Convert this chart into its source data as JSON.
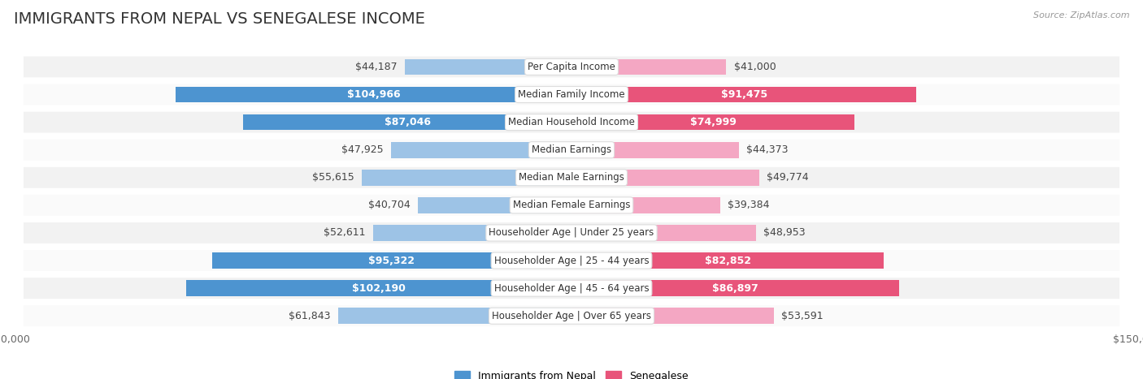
{
  "title": "IMMIGRANTS FROM NEPAL VS SENEGALESE INCOME",
  "source": "Source: ZipAtlas.com",
  "categories": [
    "Per Capita Income",
    "Median Family Income",
    "Median Household Income",
    "Median Earnings",
    "Median Male Earnings",
    "Median Female Earnings",
    "Householder Age | Under 25 years",
    "Householder Age | 25 - 44 years",
    "Householder Age | 45 - 64 years",
    "Householder Age | Over 65 years"
  ],
  "nepal_values": [
    44187,
    104966,
    87046,
    47925,
    55615,
    40704,
    52611,
    95322,
    102190,
    61843
  ],
  "senegal_values": [
    41000,
    91475,
    74999,
    44373,
    49774,
    39384,
    48953,
    82852,
    86897,
    53591
  ],
  "nepal_labels": [
    "$44,187",
    "$104,966",
    "$87,046",
    "$47,925",
    "$55,615",
    "$40,704",
    "$52,611",
    "$95,322",
    "$102,190",
    "$61,843"
  ],
  "senegal_labels": [
    "$41,000",
    "$91,475",
    "$74,999",
    "$44,373",
    "$49,774",
    "$39,384",
    "$48,953",
    "$82,852",
    "$86,897",
    "$53,591"
  ],
  "nepal_color_light": "#9dc3e6",
  "nepal_color_dark": "#4d94d0",
  "senegal_color_light": "#f4a7c3",
  "senegal_color_dark": "#e8547a",
  "axis_limit": 150000,
  "bar_height": 0.58,
  "bg_color": "#ffffff",
  "row_bg_even": "#f2f2f2",
  "row_bg_odd": "#fafafa",
  "label_fontsize": 9,
  "category_fontsize": 8.5,
  "title_fontsize": 14,
  "legend_fontsize": 9,
  "dark_threshold": 75000,
  "nepal_dark_indices": [
    1,
    2,
    7,
    8
  ],
  "senegal_dark_indices": [
    1,
    2,
    7,
    8
  ]
}
